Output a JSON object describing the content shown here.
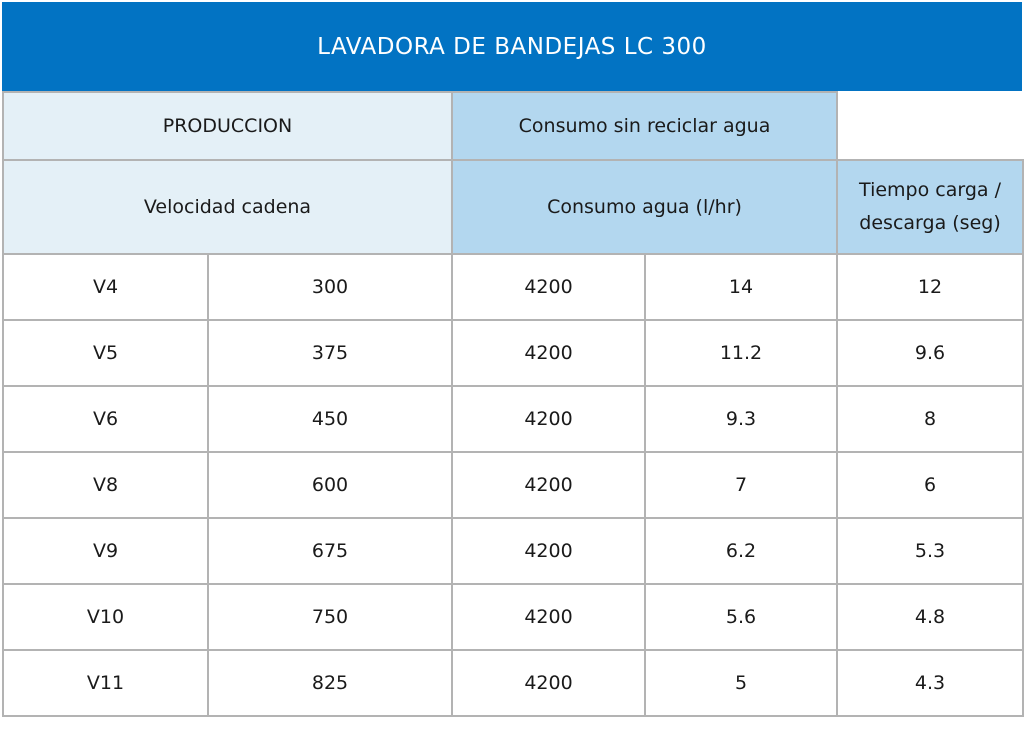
{
  "title": "LAVADORA DE BANDEJAS LC 300",
  "header": {
    "produccion": "PRODUCCION",
    "consumo_sin_reciclar": "Consumo sin reciclar agua",
    "velocidad_cadena": "Velocidad cadena",
    "consumo_agua": "Consumo agua (l/hr)",
    "tiempo_line1": "Tiempo carga /",
    "tiempo_line2": "descarga (seg)"
  },
  "rows": [
    [
      "V4",
      "300",
      "4200",
      "14",
      "12"
    ],
    [
      "V5",
      "375",
      "4200",
      "11.2",
      "9.6"
    ],
    [
      "V6",
      "450",
      "4200",
      "9.3",
      "8"
    ],
    [
      "V8",
      "600",
      "4200",
      "7",
      "6"
    ],
    [
      "V9",
      "675",
      "4200",
      "6.2",
      "5.3"
    ],
    [
      "V10",
      "750",
      "4200",
      "5.6",
      "4.8"
    ],
    [
      "V11",
      "825",
      "4200",
      "5",
      "4.3"
    ]
  ],
  "colors": {
    "title_bar": "#0273c3",
    "header_light": "#e4f0f7",
    "header_mid": "#b3d7ef",
    "grid": "#b3b3b3"
  }
}
